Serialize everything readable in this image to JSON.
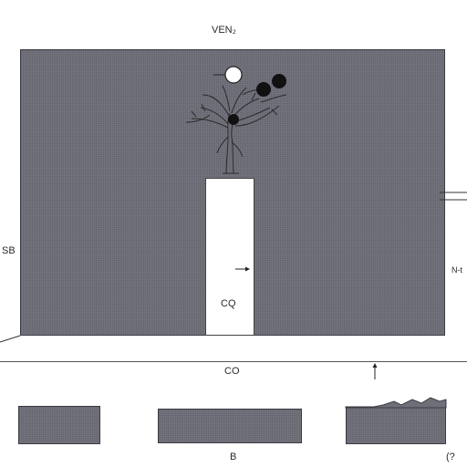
{
  "labels": {
    "top": "VEN₂",
    "left": "SB",
    "column": "CQ",
    "right": "N-t",
    "bottom": "CO",
    "block_mid": "B",
    "block_right": "(?"
  },
  "colors": {
    "panel_fill": "#6f6f7a",
    "column_fill": "#ffffff",
    "marker_dark": "#111111",
    "marker_light": "#ffffff",
    "line": "#333333"
  },
  "icons": [
    "tree-icon",
    "arrow-up-icon",
    "arrow-right-icon"
  ]
}
